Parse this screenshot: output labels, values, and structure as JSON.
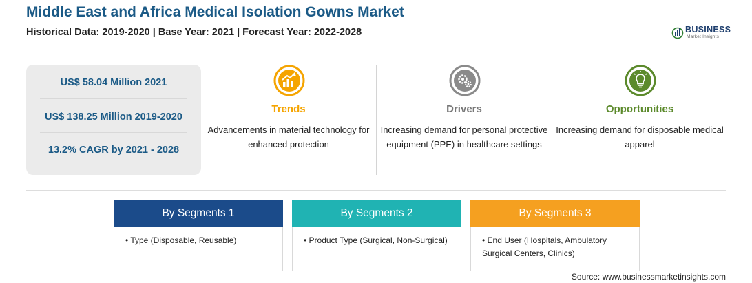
{
  "header": {
    "title": "Middle East and Africa Medical Isolation Gowns Market",
    "subtitle": "Historical Data: 2019-2020 | Base Year: 2021 | Forecast Year: 2022-2028"
  },
  "logo": {
    "name": "BUSINESS",
    "tagline": "Market Insights",
    "color": "#1f3f6e"
  },
  "stats": [
    "US$ 58.04 Million 2021",
    "US$ 138.25 Million 2019-2020",
    "13.2% CAGR by 2021 - 2028"
  ],
  "columns": {
    "trends": {
      "title": "Trends",
      "icon": "growth-chart-icon",
      "color": "#f5a400",
      "text": "Advancements in material technology for enhanced protection"
    },
    "drivers": {
      "title": "Drivers",
      "icon": "gears-icon",
      "color": "#777777",
      "text": "Increasing demand for personal protective equipment (PPE) in healthcare settings"
    },
    "opportunities": {
      "title": "Opportunities",
      "icon": "lightbulb-icon",
      "color": "#5c8a2c",
      "text": "Increasing demand for disposable medical apparel"
    }
  },
  "segments": [
    {
      "title": "By Segments 1",
      "color": "#1b4b8a",
      "item": "• Type (Disposable, Reusable)"
    },
    {
      "title": "By Segments 2",
      "color": "#20b3b3",
      "item": "• Product Type (Surgical, Non-Surgical)"
    },
    {
      "title": "By Segments 3",
      "color": "#f5a020",
      "item": "• End User (Hospitals, Ambulatory Surgical Centers, Clinics)"
    }
  ],
  "source": "Source: www.businessmarketinsights.com"
}
